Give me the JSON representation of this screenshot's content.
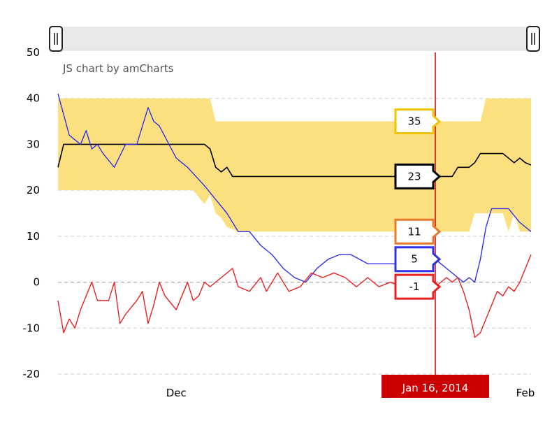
{
  "chart_data": {
    "type": "line",
    "credit": "JS chart by amCharts",
    "x_tick_labels": [
      "Dec",
      "Feb"
    ],
    "x_tick_dates": [
      "2013-12-01",
      "2014-02-01"
    ],
    "x_range": [
      "2013-11-10",
      "2014-02-02"
    ],
    "y_ticks": [
      -20,
      -10,
      0,
      10,
      20,
      30,
      40,
      50
    ],
    "ylim": [
      -20,
      50
    ],
    "grid": true,
    "cursor": {
      "date": "2014-01-16",
      "label": "Jan 16, 2014"
    },
    "band": {
      "color": "#FCE07F",
      "border_color": "#F2C200",
      "upper_value_label": "35",
      "lower_value_label": "11",
      "lower_border_color": "#E97A2C",
      "upper": [
        [
          "2013-11-10",
          40
        ],
        [
          "2013-12-07",
          40
        ],
        [
          "2013-12-08",
          35
        ],
        [
          "2014-01-24",
          35
        ],
        [
          "2014-01-25",
          40
        ],
        [
          "2014-02-02",
          40
        ]
      ],
      "lower": [
        [
          "2013-11-10",
          20
        ],
        [
          "2013-12-01",
          20
        ],
        [
          "2013-12-04",
          20
        ],
        [
          "2013-12-06",
          17
        ],
        [
          "2013-12-07",
          19
        ],
        [
          "2013-12-08",
          15
        ],
        [
          "2013-12-09",
          14
        ],
        [
          "2013-12-10",
          12
        ],
        [
          "2013-12-12",
          11
        ],
        [
          "2014-01-22",
          11
        ],
        [
          "2014-01-23",
          15
        ],
        [
          "2014-01-28",
          15
        ],
        [
          "2014-01-29",
          11
        ],
        [
          "2014-01-30",
          15
        ],
        [
          "2014-01-31",
          11
        ],
        [
          "2014-02-02",
          11
        ]
      ]
    },
    "series": [
      {
        "color": "#000000",
        "value_label": "23",
        "points": [
          [
            "2013-11-10",
            25
          ],
          [
            "2013-11-11",
            30
          ],
          [
            "2013-12-06",
            30
          ],
          [
            "2013-12-07",
            29
          ],
          [
            "2013-12-08",
            25
          ],
          [
            "2013-12-09",
            24
          ],
          [
            "2013-12-10",
            25
          ],
          [
            "2013-12-11",
            23
          ],
          [
            "2014-01-18",
            23
          ],
          [
            "2014-01-19",
            23
          ],
          [
            "2014-01-20",
            25
          ],
          [
            "2014-01-21",
            25
          ],
          [
            "2014-01-22",
            25
          ],
          [
            "2014-01-23",
            26
          ],
          [
            "2014-01-24",
            28
          ],
          [
            "2014-01-28",
            28
          ],
          [
            "2014-01-29",
            27
          ],
          [
            "2014-01-30",
            26
          ],
          [
            "2014-01-31",
            27
          ],
          [
            "2014-02-01",
            26
          ],
          [
            "2014-02-02",
            25.5
          ]
        ]
      },
      {
        "color": "#3030E8",
        "value_label": "5",
        "points": [
          [
            "2013-11-10",
            41
          ],
          [
            "2013-11-12",
            32
          ],
          [
            "2013-11-14",
            30
          ],
          [
            "2013-11-15",
            33
          ],
          [
            "2013-11-16",
            29
          ],
          [
            "2013-11-17",
            30
          ],
          [
            "2013-11-18",
            28
          ],
          [
            "2013-11-20",
            25
          ],
          [
            "2013-11-22",
            30
          ],
          [
            "2013-11-24",
            30
          ],
          [
            "2013-11-26",
            38
          ],
          [
            "2013-11-27",
            35
          ],
          [
            "2013-11-28",
            34
          ],
          [
            "2013-12-01",
            27
          ],
          [
            "2013-12-03",
            25
          ],
          [
            "2013-12-06",
            21
          ],
          [
            "2013-12-08",
            18
          ],
          [
            "2013-12-10",
            15
          ],
          [
            "2013-12-12",
            11
          ],
          [
            "2013-12-14",
            11
          ],
          [
            "2013-12-16",
            8
          ],
          [
            "2013-12-18",
            6
          ],
          [
            "2013-12-20",
            3
          ],
          [
            "2013-12-22",
            1
          ],
          [
            "2013-12-24",
            0
          ],
          [
            "2013-12-26",
            3
          ],
          [
            "2013-12-28",
            5
          ],
          [
            "2013-12-30",
            6
          ],
          [
            "2014-01-01",
            6
          ],
          [
            "2014-01-04",
            4
          ],
          [
            "2014-01-08",
            4
          ],
          [
            "2014-01-12",
            4
          ],
          [
            "2014-01-16",
            5
          ],
          [
            "2014-01-18",
            3
          ],
          [
            "2014-01-20",
            1
          ],
          [
            "2014-01-21",
            0
          ],
          [
            "2014-01-22",
            1
          ],
          [
            "2014-01-23",
            0
          ],
          [
            "2014-01-24",
            5
          ],
          [
            "2014-01-25",
            12
          ],
          [
            "2014-01-26",
            16
          ],
          [
            "2014-01-29",
            16
          ],
          [
            "2014-01-31",
            13
          ],
          [
            "2014-02-02",
            11
          ]
        ]
      },
      {
        "color": "#E82020",
        "value_label": "-1",
        "points": [
          [
            "2013-11-10",
            -4
          ],
          [
            "2013-11-11",
            -11
          ],
          [
            "2013-11-12",
            -8
          ],
          [
            "2013-11-13",
            -10
          ],
          [
            "2013-11-14",
            -6
          ],
          [
            "2013-11-16",
            0
          ],
          [
            "2013-11-17",
            -4
          ],
          [
            "2013-11-19",
            -4
          ],
          [
            "2013-11-20",
            0
          ],
          [
            "2013-11-21",
            -9
          ],
          [
            "2013-11-22",
            -7
          ],
          [
            "2013-11-24",
            -4
          ],
          [
            "2013-11-25",
            -2
          ],
          [
            "2013-11-26",
            -9
          ],
          [
            "2013-11-27",
            -5
          ],
          [
            "2013-11-28",
            0
          ],
          [
            "2013-11-29",
            -3
          ],
          [
            "2013-12-01",
            -6
          ],
          [
            "2013-12-03",
            0
          ],
          [
            "2013-12-04",
            -4
          ],
          [
            "2013-12-05",
            -3
          ],
          [
            "2013-12-06",
            0
          ],
          [
            "2013-12-07",
            -1
          ],
          [
            "2013-12-09",
            1
          ],
          [
            "2013-12-11",
            3
          ],
          [
            "2013-12-12",
            -1
          ],
          [
            "2013-12-14",
            -2
          ],
          [
            "2013-12-16",
            1
          ],
          [
            "2013-12-17",
            -2
          ],
          [
            "2013-12-19",
            2
          ],
          [
            "2013-12-21",
            -2
          ],
          [
            "2013-12-23",
            -1
          ],
          [
            "2013-12-25",
            2
          ],
          [
            "2013-12-27",
            1
          ],
          [
            "2013-12-29",
            2
          ],
          [
            "2013-12-31",
            1
          ],
          [
            "2014-01-02",
            -1
          ],
          [
            "2014-01-04",
            1
          ],
          [
            "2014-01-06",
            -1
          ],
          [
            "2014-01-08",
            0
          ],
          [
            "2014-01-10",
            -1
          ],
          [
            "2014-01-12",
            0
          ],
          [
            "2014-01-14",
            1
          ],
          [
            "2014-01-16",
            -1
          ],
          [
            "2014-01-18",
            1
          ],
          [
            "2014-01-19",
            0
          ],
          [
            "2014-01-20",
            1
          ],
          [
            "2014-01-21",
            -2
          ],
          [
            "2014-01-22",
            -6
          ],
          [
            "2014-01-23",
            -12
          ],
          [
            "2014-01-24",
            -11
          ],
          [
            "2014-01-25",
            -8
          ],
          [
            "2014-01-26",
            -5
          ],
          [
            "2014-01-27",
            -2
          ],
          [
            "2014-01-28",
            -3
          ],
          [
            "2014-01-29",
            -1
          ],
          [
            "2014-01-30",
            -2
          ],
          [
            "2014-01-31",
            0
          ],
          [
            "2014-02-01",
            3
          ],
          [
            "2014-02-02",
            6
          ]
        ]
      }
    ],
    "scrollbar": {
      "start": 0,
      "end": 1
    }
  }
}
